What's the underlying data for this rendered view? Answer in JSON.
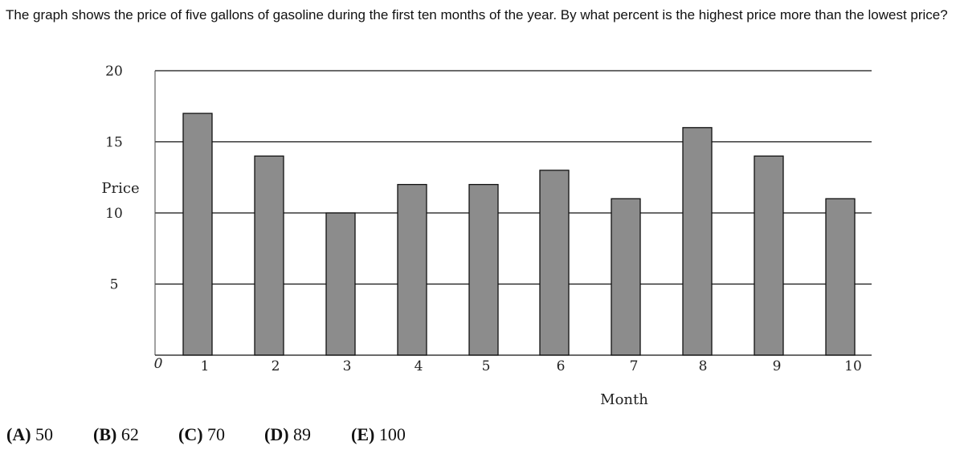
{
  "question": "The graph shows the price of five gallons of gasoline during the first ten months of the year. By what percent is the highest price more than the lowest price?",
  "chart_data": {
    "type": "bar",
    "categories": [
      "1",
      "2",
      "3",
      "4",
      "5",
      "6",
      "7",
      "8",
      "9",
      "10"
    ],
    "values": [
      17,
      14,
      10,
      12,
      12,
      13,
      11,
      16,
      14,
      11
    ],
    "xlabel": "Month",
    "ylabel": "Price",
    "ylim": [
      0,
      20
    ],
    "y_ticks": [
      "5",
      "10",
      "15",
      "20"
    ],
    "x_zero_label": "0",
    "gridlines": [
      5,
      10,
      15,
      20
    ],
    "bar_color": "#8c8c8c"
  },
  "answers": [
    {
      "letter": "(A)",
      "value": "50"
    },
    {
      "letter": "(B)",
      "value": "62"
    },
    {
      "letter": "(C)",
      "value": "70"
    },
    {
      "letter": "(D)",
      "value": "89"
    },
    {
      "letter": "(E)",
      "value": "100"
    }
  ]
}
